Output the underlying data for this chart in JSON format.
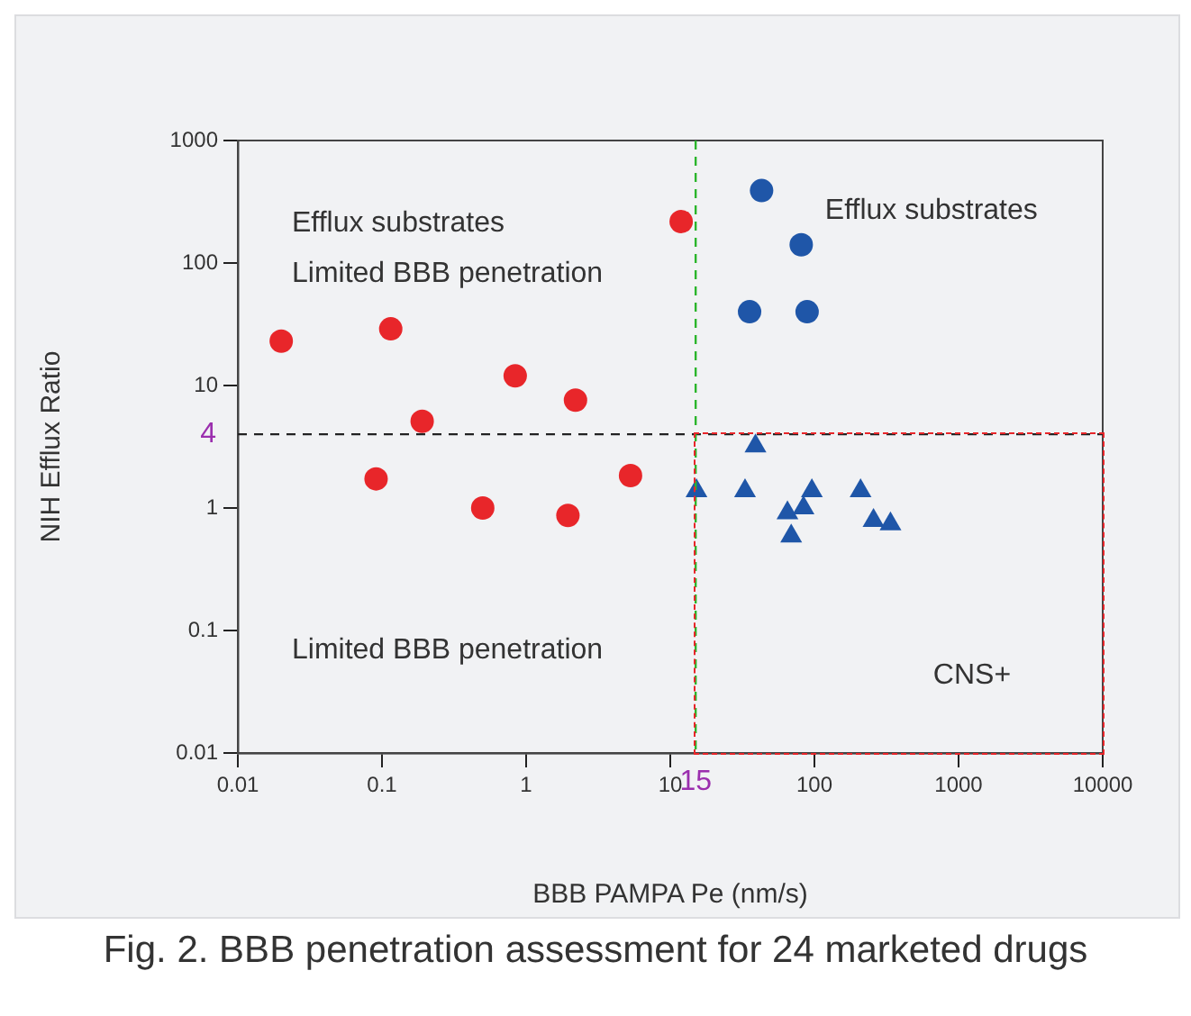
{
  "chart_data": {
    "type": "scatter",
    "xlabel": "BBB PAMPA Pe (nm/s)",
    "ylabel": "NIH Efflux Ratio",
    "log": "xy",
    "grid": false,
    "legend": false,
    "xlim": [
      0.01,
      10000
    ],
    "xticks": [
      0.01,
      0.1,
      1,
      10,
      100,
      1000,
      10000
    ],
    "ylim": [
      0.01,
      1000
    ],
    "yticks": [
      0.01,
      0.1,
      1,
      10,
      100,
      1000
    ],
    "series": [
      {
        "color": "#e8262a",
        "marker": "circle",
        "x": [
          0.02,
          0.115,
          0.84,
          2.2,
          0.19,
          11.9,
          0.091,
          0.5,
          1.95,
          5.3
        ],
        "values": [
          23,
          29,
          12,
          7.6,
          5.1,
          218,
          1.73,
          1.0,
          0.87,
          1.84
        ]
      },
      {
        "color": "#1f56a8",
        "marker": "circle",
        "x": [
          43,
          81,
          35.5,
          89
        ],
        "values": [
          390,
          141,
          40,
          40
        ]
      },
      {
        "color": "#1f56a8",
        "marker": "triangle",
        "x": [
          15.2,
          39,
          33,
          65,
          84,
          96,
          69,
          209,
          257,
          337
        ],
        "values": [
          1.38,
          3.2,
          1.38,
          0.91,
          1.0,
          1.38,
          0.59,
          1.38,
          0.79,
          0.74
        ]
      }
    ],
    "ref_lines": [
      {
        "axis": "y",
        "value": 4,
        "label": "4",
        "color": "#222222",
        "line_style": "dashed"
      },
      {
        "axis": "x",
        "value": 15,
        "label": "15",
        "color": "#2bb52b",
        "line_style": "dashed"
      }
    ],
    "annotations": [
      "Efflux substrates",
      "Limited BBB penetration",
      "Efflux substrates",
      "Limited BBB penetration",
      "CNS+",
      "Fig. 2. BBB penetration assessment for 24 marketed drugs"
    ]
  }
}
